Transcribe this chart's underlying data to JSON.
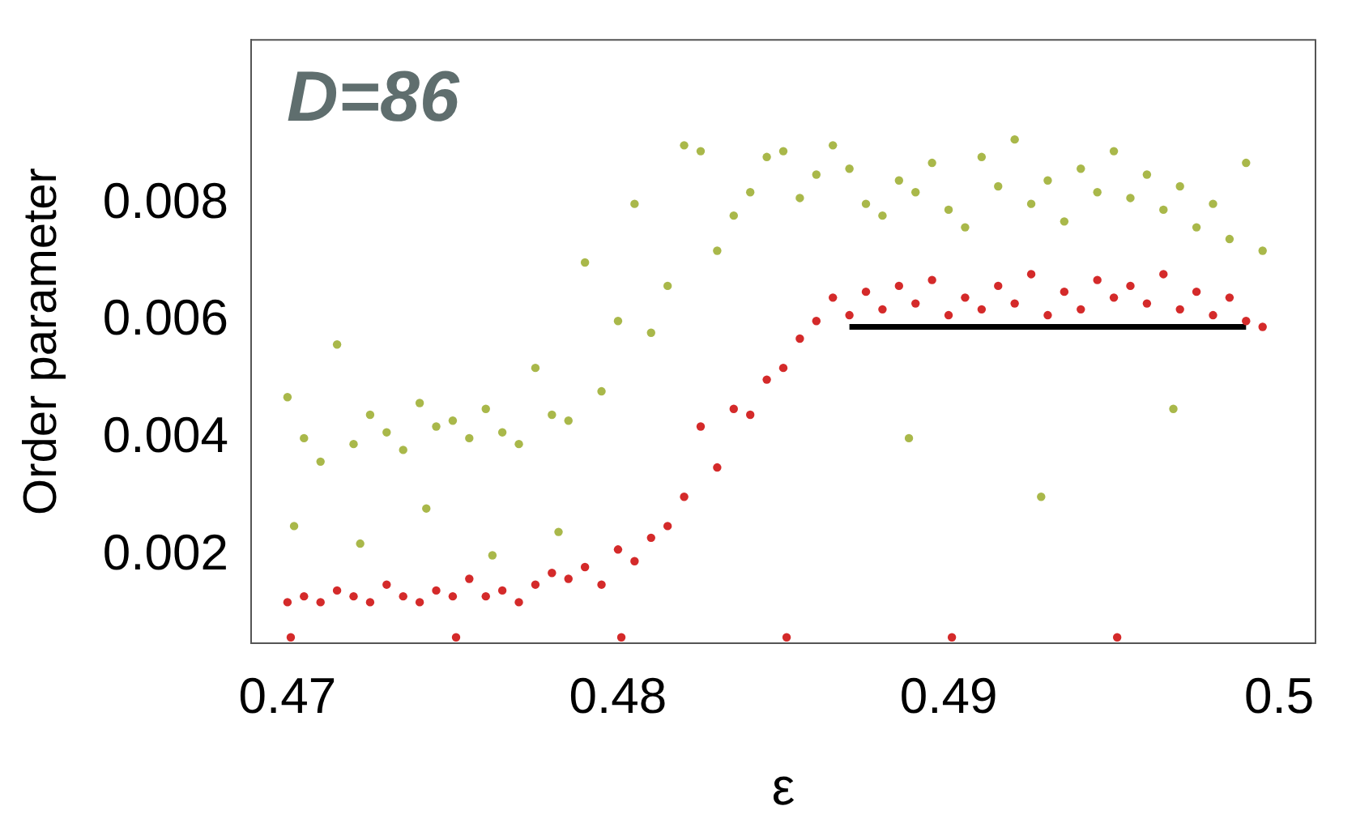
{
  "chart_data": {
    "type": "scatter",
    "xlabel": "ε",
    "ylabel": "Order parameter",
    "annotations": [
      "D=86"
    ],
    "xlim": [
      0.4689,
      0.5011
    ],
    "ylim": [
      0.0005,
      0.0108
    ],
    "xticks": [
      0.47,
      0.48,
      0.49,
      0.5
    ],
    "yticks": [
      0.002,
      0.004,
      0.006,
      0.008
    ],
    "grid": false,
    "legend": false,
    "marker": "circle",
    "series": [
      {
        "color": "#a9b84a",
        "x": [
          0.47,
          0.4705,
          0.471,
          0.4715,
          0.472,
          0.4725,
          0.473,
          0.4735,
          0.474,
          0.4745,
          0.475,
          0.4755,
          0.476,
          0.4765,
          0.477,
          0.4775,
          0.478,
          0.4785,
          0.479,
          0.4795,
          0.48,
          0.4805,
          0.481,
          0.4815,
          0.482,
          0.4825,
          0.483,
          0.4835,
          0.484,
          0.4845,
          0.485,
          0.4855,
          0.486,
          0.4865,
          0.487,
          0.4875,
          0.488,
          0.4885,
          0.489,
          0.4895,
          0.49,
          0.4905,
          0.491,
          0.4915,
          0.492,
          0.4925,
          0.493,
          0.4935,
          0.494,
          0.4945,
          0.495,
          0.4955,
          0.496,
          0.4965,
          0.497,
          0.4975,
          0.498,
          0.4985,
          0.499,
          0.4995,
          0.4702,
          0.4722,
          0.4742,
          0.4762,
          0.4782,
          0.4888,
          0.4928,
          0.4968
        ],
        "values": [
          0.0047,
          0.004,
          0.0036,
          0.0056,
          0.0039,
          0.0044,
          0.0041,
          0.0038,
          0.0046,
          0.0042,
          0.0043,
          0.004,
          0.0045,
          0.0041,
          0.0039,
          0.0052,
          0.0044,
          0.0043,
          0.007,
          0.0048,
          0.006,
          0.008,
          0.0058,
          0.0066,
          0.009,
          0.0089,
          0.0072,
          0.0078,
          0.0082,
          0.0088,
          0.0089,
          0.0081,
          0.0085,
          0.009,
          0.0086,
          0.008,
          0.0078,
          0.0084,
          0.0082,
          0.0087,
          0.0079,
          0.0076,
          0.0088,
          0.0083,
          0.0091,
          0.008,
          0.0084,
          0.0077,
          0.0086,
          0.0082,
          0.0089,
          0.0081,
          0.0085,
          0.0079,
          0.0083,
          0.0076,
          0.008,
          0.0074,
          0.0087,
          0.0072,
          0.0025,
          0.0022,
          0.0028,
          0.002,
          0.0024,
          0.004,
          0.003,
          0.0045
        ]
      },
      {
        "color": "#d42a2a",
        "x": [
          0.47,
          0.4705,
          0.471,
          0.4715,
          0.472,
          0.4725,
          0.473,
          0.4735,
          0.474,
          0.4745,
          0.475,
          0.4755,
          0.476,
          0.4765,
          0.477,
          0.4775,
          0.478,
          0.4785,
          0.479,
          0.4795,
          0.48,
          0.4805,
          0.481,
          0.4815,
          0.482,
          0.4825,
          0.483,
          0.4835,
          0.484,
          0.4845,
          0.485,
          0.4855,
          0.486,
          0.4865,
          0.487,
          0.4875,
          0.488,
          0.4885,
          0.489,
          0.4895,
          0.49,
          0.4905,
          0.491,
          0.4915,
          0.492,
          0.4925,
          0.493,
          0.4935,
          0.494,
          0.4945,
          0.495,
          0.4955,
          0.496,
          0.4965,
          0.497,
          0.4975,
          0.498,
          0.4985,
          0.499,
          0.4995,
          0.4701,
          0.4751,
          0.4801,
          0.4851,
          0.4901,
          0.4951
        ],
        "values": [
          0.0012,
          0.0013,
          0.0012,
          0.0014,
          0.0013,
          0.0012,
          0.0015,
          0.0013,
          0.0012,
          0.0014,
          0.0013,
          0.0016,
          0.0013,
          0.0014,
          0.0012,
          0.0015,
          0.0017,
          0.0016,
          0.0018,
          0.0015,
          0.0021,
          0.0019,
          0.0023,
          0.0025,
          0.003,
          0.0042,
          0.0035,
          0.0045,
          0.0044,
          0.005,
          0.0052,
          0.0057,
          0.006,
          0.0064,
          0.0061,
          0.0065,
          0.0062,
          0.0066,
          0.0063,
          0.0067,
          0.0061,
          0.0064,
          0.0062,
          0.0066,
          0.0063,
          0.0068,
          0.0061,
          0.0065,
          0.0062,
          0.0067,
          0.0064,
          0.0066,
          0.0063,
          0.0068,
          0.0062,
          0.0065,
          0.0061,
          0.0064,
          0.006,
          0.0059,
          0.0006,
          0.0006,
          0.0006,
          0.0006,
          0.0006,
          0.0006
        ]
      },
      {
        "type": "line",
        "color": "#000000",
        "marker": "none",
        "x": [
          0.487,
          0.499
        ],
        "values": [
          0.0059,
          0.0059
        ]
      }
    ]
  }
}
